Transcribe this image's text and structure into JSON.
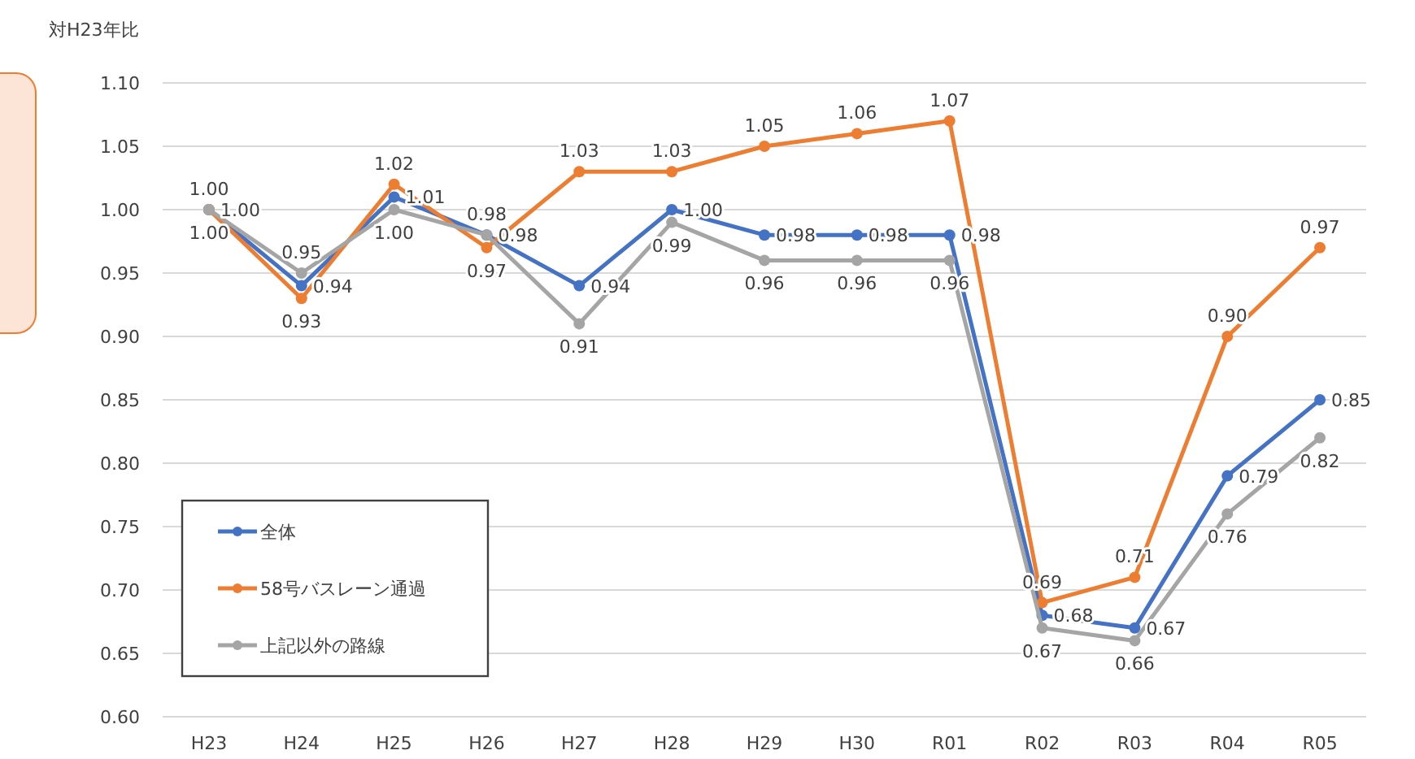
{
  "chart_data": {
    "type": "line",
    "ylabel": "対H23年比",
    "categories": [
      "H23",
      "H24",
      "H25",
      "H26",
      "H27",
      "H28",
      "H29",
      "H30",
      "R01",
      "R02",
      "R03",
      "R04",
      "R05"
    ],
    "series": [
      {
        "name": "全体",
        "color": "#4472c4",
        "values": [
          1.0,
          0.94,
          1.01,
          0.98,
          0.94,
          1.0,
          0.98,
          0.98,
          0.98,
          0.68,
          0.67,
          0.79,
          0.85
        ],
        "value_labels": [
          "1.00",
          "0.94",
          "1.01",
          "0.98",
          "0.94",
          "1.00",
          "0.98",
          "0.98",
          "0.98",
          "0.68",
          "0.67",
          "0.79",
          "0.85"
        ]
      },
      {
        "name": "58号バスレーン通過",
        "color": "#ed7d31",
        "values": [
          1.0,
          0.93,
          1.02,
          0.97,
          1.03,
          1.03,
          1.05,
          1.06,
          1.07,
          0.69,
          0.71,
          0.9,
          0.97
        ],
        "value_labels": [
          "1.00",
          "0.93",
          "1.02",
          "0.97",
          "1.03",
          "1.03",
          "1.05",
          "1.06",
          "1.07",
          "0.69",
          "0.71",
          "0.90",
          "0.97"
        ]
      },
      {
        "name": "上記以外の路線",
        "color": "#a5a5a5",
        "values": [
          1.0,
          0.95,
          1.0,
          0.98,
          0.91,
          0.99,
          0.96,
          0.96,
          0.96,
          0.67,
          0.66,
          0.76,
          0.82
        ],
        "value_labels": [
          "1.00",
          "0.95",
          "1.00",
          "0.98",
          "0.91",
          "0.99",
          "0.96",
          "0.96",
          "0.96",
          "0.67",
          "0.66",
          "0.76",
          "0.82"
        ]
      }
    ],
    "ylim": [
      0.6,
      1.1
    ],
    "yticks": [
      "0.60",
      "0.65",
      "0.70",
      "0.75",
      "0.80",
      "0.85",
      "0.90",
      "0.95",
      "1.00",
      "1.05",
      "1.10"
    ],
    "grid": "y",
    "legend": "bottom left",
    "marker": "circle",
    "line_style": "solid"
  }
}
